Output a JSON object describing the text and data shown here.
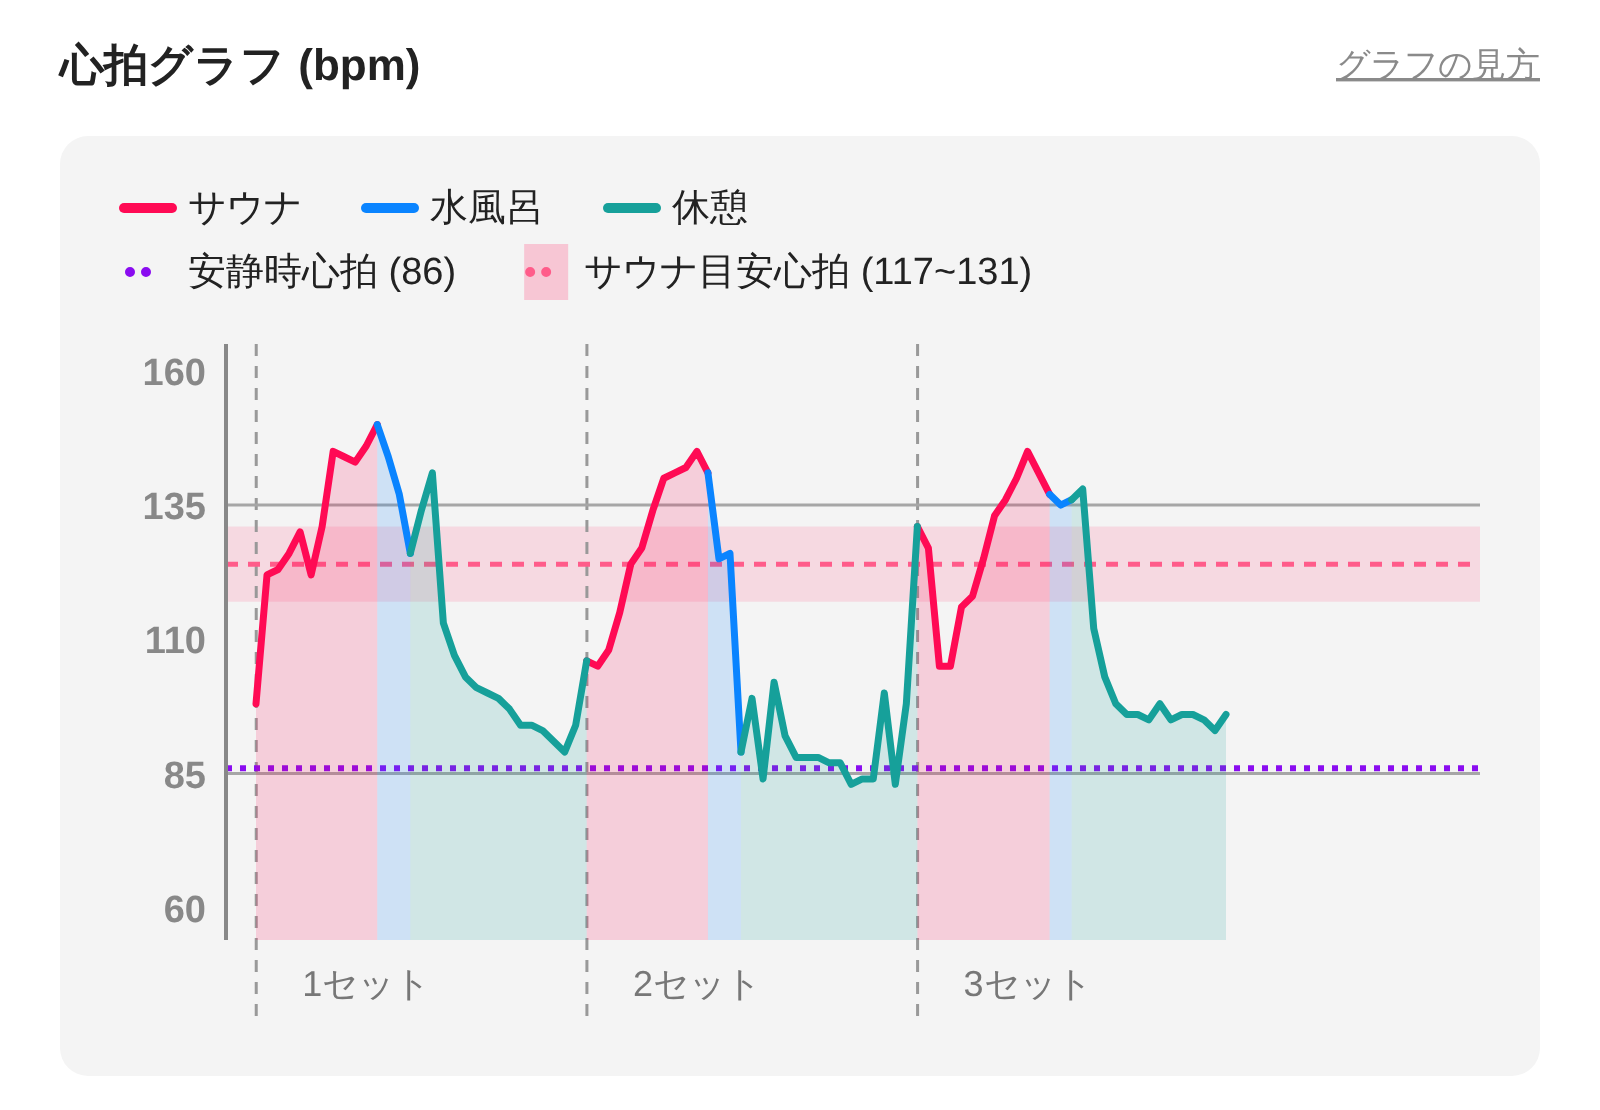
{
  "chart_data": {
    "type": "area",
    "title": "心拍グラフ (bpm)",
    "annotations": [
      "グラフの見方"
    ],
    "categories": [
      null,
      null,
      null,
      null,
      null,
      null,
      null,
      null,
      null,
      null,
      "1セット",
      null,
      null,
      null,
      null,
      null,
      null,
      null,
      null,
      null,
      null,
      null,
      null,
      null,
      null,
      null,
      null,
      null,
      null,
      null,
      null,
      null,
      null,
      null,
      null,
      null,
      null,
      null,
      null,
      null,
      "2セット",
      null,
      null,
      null,
      null,
      null,
      null,
      null,
      null,
      null,
      null,
      null,
      null,
      null,
      null,
      null,
      null,
      null,
      null,
      null,
      null,
      null,
      null,
      null,
      null,
      null,
      null,
      null,
      null,
      null,
      "3セット",
      null,
      null,
      null,
      null,
      null,
      null,
      null,
      null,
      null,
      null,
      null,
      null,
      null,
      null,
      null,
      null,
      null,
      null
    ],
    "ylim": [
      54,
      165
    ],
    "yticks": [
      60,
      85,
      110,
      135,
      160
    ],
    "legend": "top",
    "grid": false,
    "line_style": "solid",
    "marker": "none",
    "series": [
      {
        "name": "サウナ",
        "color": "#ff0a54",
        "values": [
          98,
          122,
          123,
          126,
          130,
          122,
          131,
          145,
          144,
          143,
          146,
          150,
          null,
          null,
          null,
          null,
          null,
          null,
          null,
          null,
          null,
          null,
          null,
          null,
          null,
          null,
          null,
          null,
          null,
          null,
          106,
          105,
          108,
          115,
          124,
          127,
          134,
          140,
          141,
          142,
          145,
          141,
          null,
          null,
          null,
          null,
          null,
          null,
          null,
          null,
          null,
          null,
          null,
          null,
          null,
          null,
          null,
          null,
          null,
          null,
          131,
          127,
          105,
          105,
          116,
          118,
          125,
          133,
          136,
          140,
          145,
          141,
          137,
          null,
          null,
          null,
          null,
          null,
          null,
          null,
          null,
          null,
          null,
          null,
          null,
          null,
          null,
          null,
          null
        ]
      },
      {
        "name": "水風呂",
        "color": "#0a84ff",
        "values": [
          null,
          null,
          null,
          null,
          null,
          null,
          null,
          null,
          null,
          null,
          null,
          150,
          144,
          137,
          126,
          null,
          null,
          null,
          null,
          null,
          null,
          null,
          null,
          null,
          null,
          null,
          null,
          null,
          null,
          null,
          null,
          null,
          null,
          null,
          null,
          null,
          null,
          null,
          null,
          null,
          null,
          141,
          125,
          126,
          89,
          null,
          null,
          null,
          null,
          null,
          null,
          null,
          null,
          null,
          null,
          null,
          null,
          null,
          null,
          null,
          null,
          null,
          null,
          null,
          null,
          null,
          null,
          null,
          null,
          null,
          null,
          null,
          137,
          135,
          136,
          null,
          null,
          null,
          null,
          null,
          null,
          null,
          null,
          null,
          null,
          null,
          null,
          null,
          null
        ]
      },
      {
        "name": "休憩",
        "color": "#16a09a",
        "values": [
          null,
          null,
          null,
          null,
          null,
          null,
          null,
          null,
          null,
          null,
          null,
          null,
          null,
          null,
          126,
          134,
          141,
          113,
          107,
          103,
          101,
          100,
          99,
          97,
          94,
          94,
          93,
          91,
          89,
          94,
          106,
          null,
          null,
          null,
          null,
          null,
          null,
          null,
          null,
          null,
          null,
          null,
          null,
          null,
          89,
          99,
          84,
          102,
          92,
          88,
          88,
          88,
          87,
          87,
          83,
          84,
          84,
          100,
          83,
          98,
          131,
          null,
          null,
          null,
          null,
          null,
          null,
          null,
          null,
          null,
          null,
          null,
          null,
          null,
          136,
          138,
          112,
          103,
          98,
          96,
          96,
          95,
          98,
          95,
          96,
          96,
          95,
          93,
          96
        ]
      }
    ],
    "ref_lines": [
      {
        "axis": "y",
        "value": 135,
        "color": "#a6a6a6",
        "line_style": "solid"
      },
      {
        "axis": "y",
        "value": 85,
        "color": "#a6a6a6",
        "line_style": "solid"
      },
      {
        "axis": "y",
        "value": 124,
        "color": "#ff5c8a",
        "line_style": "dashed"
      },
      {
        "axis": "y",
        "value": 86,
        "label": "安静時心拍 (86)",
        "color": "#8a0cf0",
        "line_style": "dotted"
      }
    ],
    "bands": [
      {
        "axis": "y",
        "from": 117,
        "to": 131,
        "label": "サウナ目安心拍 (117~131)",
        "color": "#f7c6d4"
      }
    ]
  }
}
